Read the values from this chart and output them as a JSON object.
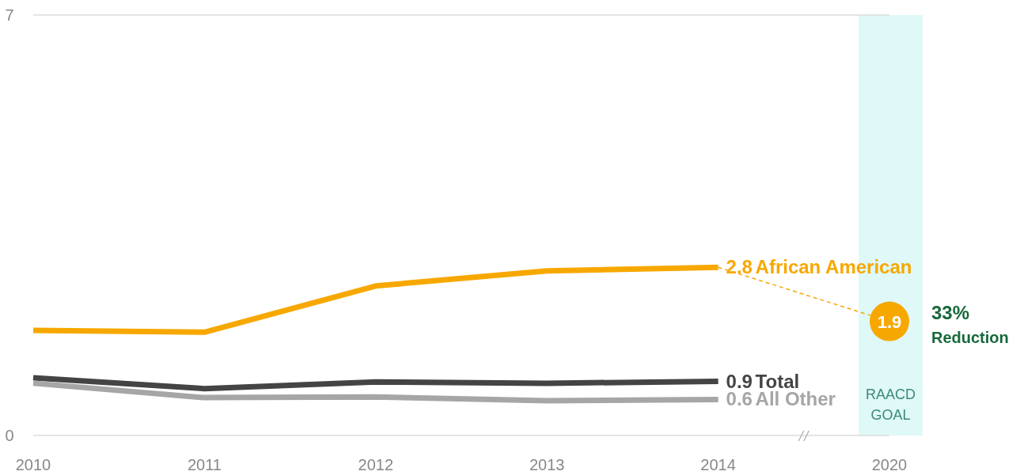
{
  "chart_data": {
    "type": "line",
    "categories": [
      "2010",
      "2011",
      "2012",
      "2013",
      "2014",
      "2020"
    ],
    "ylim": [
      0,
      7
    ],
    "yticks": [
      0,
      7
    ],
    "marker": "none",
    "series": [
      {
        "name": "African American",
        "color": "#f7a800",
        "values": [
          1.75,
          1.72,
          2.49,
          2.74,
          2.8,
          null
        ],
        "value_labels": [
          null,
          null,
          null,
          null,
          "2.8",
          null
        ]
      },
      {
        "name": "Total",
        "color": "#444444",
        "values": [
          0.96,
          0.78,
          0.89,
          0.87,
          0.9,
          null
        ],
        "value_labels": [
          null,
          null,
          null,
          null,
          "0.9",
          null
        ]
      },
      {
        "name": "All Other",
        "color": "#a6a6a6",
        "values": [
          0.87,
          0.63,
          0.64,
          0.58,
          0.6,
          null
        ],
        "value_labels": [
          null,
          null,
          null,
          null,
          "0.6",
          null
        ]
      },
      {
        "type": "line",
        "line_style": "dashed",
        "color": "#f7a800",
        "values": [
          null,
          null,
          null,
          null,
          2.8,
          1.9
        ]
      },
      {
        "type": "scatter",
        "marker": "circle",
        "color": "#f7a800",
        "values": [
          null,
          null,
          null,
          null,
          null,
          1.9
        ],
        "value_labels": [
          null,
          null,
          null,
          null,
          null,
          "1.9"
        ]
      }
    ],
    "bands": [
      {
        "axis": "x",
        "from": "2020",
        "to": "2020",
        "label": "RAACD GOAL",
        "color": "#dff8f8"
      }
    ],
    "annotations": [
      {
        "text": "33% Reduction",
        "x": "2020",
        "y": 1.9
      }
    ]
  }
}
